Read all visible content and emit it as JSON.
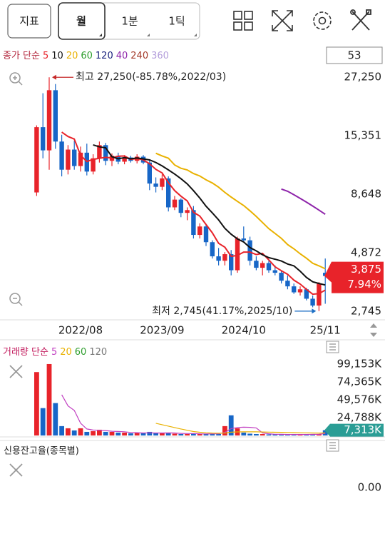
{
  "toolbar": {
    "buttons": [
      "지표",
      "월",
      "1분",
      "1틱"
    ]
  },
  "counter": "53",
  "chart_data": [
    {
      "type": "candlestick",
      "legend_label": "종가 단순",
      "categories": [
        null,
        null,
        null,
        null,
        null,
        null,
        null,
        "2022/08",
        null,
        null,
        null,
        null,
        null,
        null,
        null,
        null,
        null,
        null,
        null,
        null,
        "2023/09",
        null,
        null,
        null,
        null,
        null,
        null,
        null,
        null,
        null,
        null,
        null,
        null,
        "2024/10",
        null,
        null,
        null,
        null,
        null,
        null,
        null,
        null,
        null,
        null,
        null,
        null,
        "25/11"
      ],
      "open": [
        8800,
        16700,
        13300,
        24000,
        14500,
        11000,
        13400,
        11400,
        13000,
        10800,
        12300,
        14000,
        12000,
        12600,
        11900,
        12400,
        12000,
        12500,
        11800,
        9600,
        9300,
        10100,
        7600,
        8200,
        7200,
        7400,
        5800,
        6300,
        5400,
        4700,
        4500,
        4800,
        4100,
        5600,
        5500,
        4500,
        4200,
        4400,
        4100,
        4000,
        3700,
        3500,
        3300,
        3400,
        3100,
        2900,
        4000
      ],
      "high": [
        17000,
        23300,
        27250,
        25500,
        15500,
        14000,
        14600,
        13800,
        14200,
        12800,
        14500,
        14300,
        12900,
        13000,
        12700,
        12600,
        12800,
        12700,
        12200,
        10200,
        10500,
        10300,
        8500,
        8300,
        7600,
        7700,
        6500,
        6400,
        5500,
        5100,
        4900,
        5000,
        5700,
        6300,
        5700,
        4700,
        4500,
        4500,
        4300,
        4100,
        3900,
        3600,
        3500,
        3450,
        3200,
        3650,
        4600
      ],
      "low": [
        8500,
        12300,
        11000,
        13500,
        10300,
        10500,
        11000,
        10800,
        10400,
        10500,
        11800,
        11500,
        11400,
        11600,
        11600,
        11800,
        11700,
        11600,
        9000,
        8800,
        9000,
        7300,
        7400,
        6900,
        6700,
        5600,
        5600,
        5200,
        4600,
        4300,
        4300,
        3900,
        4000,
        5400,
        4300,
        4100,
        3900,
        4000,
        3900,
        3600,
        3400,
        3250,
        3200,
        3050,
        2850,
        2745,
        2950
      ],
      "close": [
        16700,
        13300,
        24000,
        14500,
        11000,
        13400,
        11400,
        13000,
        10800,
        12300,
        14000,
        12000,
        12600,
        11900,
        12400,
        12000,
        12500,
        11800,
        9600,
        9300,
        10100,
        7600,
        8200,
        7200,
        7400,
        5800,
        6300,
        5400,
        4700,
        4500,
        4800,
        4100,
        5600,
        5500,
        4500,
        4200,
        4400,
        4100,
        4000,
        3700,
        3500,
        3300,
        3400,
        3100,
        2900,
        3590,
        3875
      ],
      "up_color": "#e8232a",
      "down_color": "#1766c7",
      "log_scale": true,
      "ylim": [
        2520,
        29900
      ],
      "yticks": [
        {
          "value": 27250,
          "label": "27,250"
        },
        {
          "value": 15351,
          "label": "15,351"
        },
        {
          "value": 8648,
          "label": "8,648"
        },
        {
          "value": 4872,
          "label": "4,872"
        },
        {
          "value": 2745,
          "label": "2,745"
        }
      ],
      "series": [
        {
          "name": "5",
          "color": "#e8232a",
          "values": [
            null,
            null,
            null,
            null,
            15900,
            15240,
            14860,
            12660,
            11920,
            12180,
            12300,
            12420,
            12340,
            12560,
            12580,
            12180,
            12280,
            12120,
            11660,
            11040,
            10660,
            9680,
            8960,
            8480,
            8100,
            7240,
            6980,
            6420,
            5920,
            5340,
            5140,
            4700,
            4740,
            4900,
            4900,
            4780,
            4840,
            4540,
            4240,
            4080,
            3940,
            3720,
            3580,
            3400,
            3240,
            3258,
            3373
          ]
        },
        {
          "name": "10",
          "color": "#111111",
          "values": [
            null,
            null,
            null,
            null,
            null,
            null,
            null,
            null,
            null,
            14040,
            13770,
            13640,
            12500,
            12240,
            12380,
            12240,
            12350,
            12230,
            12110,
            11810,
            11420,
            10980,
            10540,
            10070,
            9570,
            8950,
            8330,
            7690,
            7200,
            6720,
            6190,
            5840,
            5580,
            5410,
            5120,
            4960,
            4770,
            4640,
            4570,
            4490,
            4360,
            4280,
            4060,
            3820,
            3660,
            3600,
            3547
          ]
        },
        {
          "name": "20",
          "color": "#e9b100",
          "values": [
            null,
            null,
            null,
            null,
            null,
            null,
            null,
            null,
            null,
            null,
            null,
            null,
            null,
            null,
            null,
            null,
            null,
            null,
            null,
            12925,
            12595,
            12310,
            11520,
            11155,
            10975,
            10595,
            10340,
            9960,
            9655,
            9265,
            8805,
            8410,
            8060,
            7740,
            7345,
            6955,
            6550,
            6165,
            5885,
            5605,
            5275,
            5060,
            4820,
            4615,
            4390,
            4280,
            4160
          ]
        },
        {
          "name": "60",
          "color": "#2e9e2e"
        },
        {
          "name": "120",
          "color": "#1a237e"
        },
        {
          "name": "40",
          "color": "#8e24aa",
          "values": [
            null,
            null,
            null,
            null,
            null,
            null,
            null,
            null,
            null,
            null,
            null,
            null,
            null,
            null,
            null,
            null,
            null,
            null,
            null,
            null,
            null,
            null,
            null,
            null,
            null,
            null,
            null,
            null,
            null,
            null,
            null,
            null,
            null,
            null,
            null,
            null,
            null,
            null,
            null,
            9100,
            8900,
            8600,
            8300,
            8000,
            7700,
            7400,
            7100
          ]
        },
        {
          "name": "240",
          "color": "#a33a2a"
        },
        {
          "name": "360",
          "color": "#b39ddb"
        }
      ],
      "annotations": {
        "high": "최고 27,250(-85.78%,2022/03)",
        "low": "최저 2,745(41.17%,2025/10)"
      },
      "last_price": {
        "value": 3875,
        "label": "3,875",
        "change": "7.94%"
      }
    },
    {
      "type": "bar",
      "legend_label": "거래량 단순",
      "values": [
        88000,
        38000,
        99153,
        45000,
        13000,
        10000,
        7000,
        10000,
        5000,
        6000,
        8000,
        5000,
        5000,
        4000,
        4000,
        3000,
        3500,
        3000,
        5000,
        3000,
        3000,
        4000,
        2500,
        2000,
        2000,
        3000,
        2000,
        2000,
        2500,
        2000,
        13000,
        28000,
        10000,
        4000,
        2500,
        2000,
        2000,
        1500,
        1500,
        1500,
        1200,
        1200,
        1500,
        1500,
        1500,
        2000,
        7313
      ],
      "ylim": [
        0,
        112000
      ],
      "yticks": [
        {
          "value": 99153,
          "label": "99,153K"
        },
        {
          "value": 74365,
          "label": "74,365K"
        },
        {
          "value": 49576,
          "label": "49,576K"
        },
        {
          "value": 24788,
          "label": "24,788K"
        }
      ],
      "series": [
        {
          "name": "5",
          "color": "#c13fc1",
          "values": [
            null,
            null,
            null,
            null,
            56630,
            41030,
            34830,
            17000,
            9000,
            7600,
            7200,
            6800,
            5800,
            5600,
            5200,
            4200,
            3900,
            3500,
            3700,
            3500,
            3500,
            3600,
            3500,
            2900,
            2700,
            2700,
            2300,
            2200,
            2300,
            2300,
            4300,
            9500,
            11100,
            11500,
            11300,
            10500,
            3600,
            2400,
            1700,
            1600,
            1400,
            1400,
            1400,
            1400,
            1500,
            1600,
            2800
          ]
        },
        {
          "name": "20",
          "color": "#e9b100",
          "values": [
            null,
            null,
            null,
            null,
            null,
            null,
            null,
            null,
            null,
            null,
            null,
            null,
            null,
            null,
            null,
            null,
            null,
            null,
            null,
            16900,
            15000,
            13000,
            11000,
            9000,
            7200,
            5500,
            4500,
            3800,
            3400,
            3200,
            3400,
            4600,
            5000,
            5100,
            5200,
            5100,
            4900,
            4700,
            4500,
            4400,
            4200,
            4000,
            3800,
            3700,
            3500,
            3400,
            3600
          ]
        },
        {
          "name": "60",
          "color": "#2e9e2e"
        },
        {
          "name": "120",
          "color": "#777777"
        }
      ],
      "last_value": {
        "value": 7313,
        "label": "7,313K"
      }
    },
    {
      "type": "line",
      "title": "신용잔고율(종목별)",
      "ylim": [
        -1,
        1
      ],
      "yticks": [
        {
          "value": 0,
          "label": "0.00"
        }
      ]
    }
  ]
}
